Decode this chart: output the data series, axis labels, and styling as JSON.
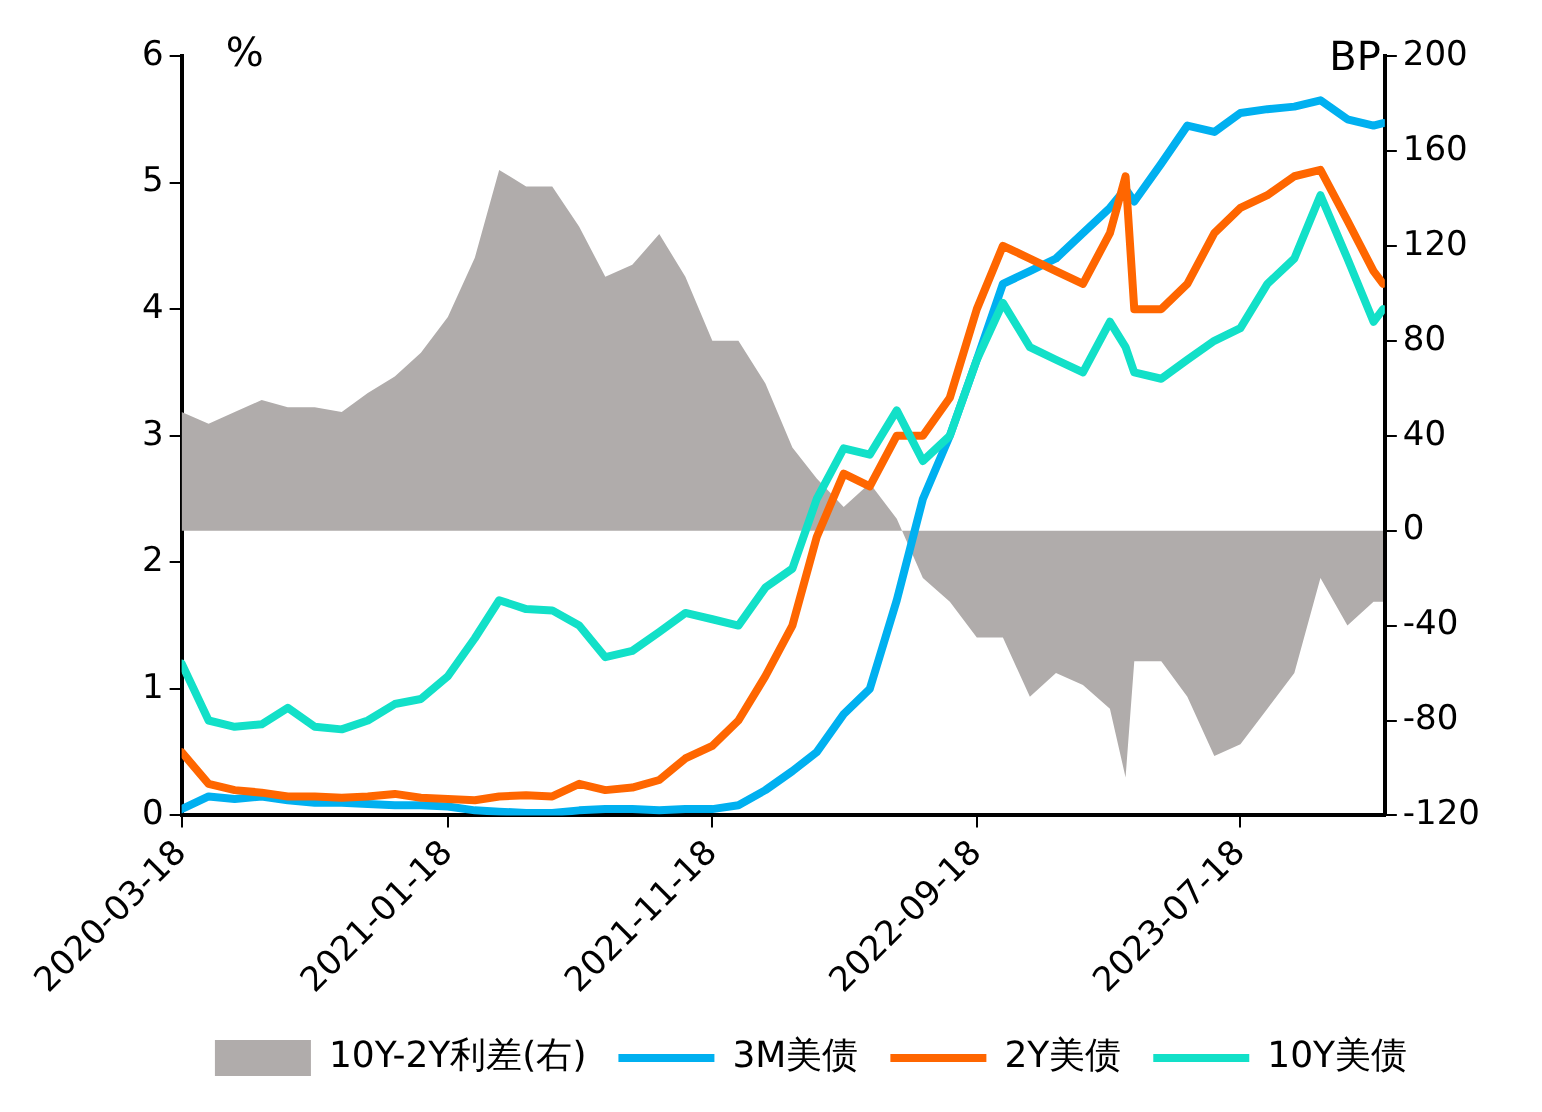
{
  "chart_data": {
    "type": "line",
    "ylabel": "%",
    "y2label": "BP",
    "x": [
      "2020-03-18",
      "2020-04-18",
      "2020-05-18",
      "2020-06-18",
      "2020-07-18",
      "2020-08-18",
      "2020-09-18",
      "2020-10-18",
      "2020-11-18",
      "2020-12-18",
      "2021-01-18",
      "2021-02-18",
      "2021-03-18",
      "2021-04-18",
      "2021-05-18",
      "2021-06-18",
      "2021-07-18",
      "2021-08-18",
      "2021-09-18",
      "2021-10-18",
      "2021-11-18",
      "2021-12-18",
      "2022-01-18",
      "2022-02-18",
      "2022-03-18",
      "2022-04-18",
      "2022-05-18",
      "2022-06-18",
      "2022-07-18",
      "2022-08-18",
      "2022-09-18",
      "2022-10-18",
      "2022-11-18",
      "2022-12-18",
      "2023-01-18",
      "2023-02-18",
      "2023-03-08",
      "2023-03-18",
      "2023-04-18",
      "2023-05-18",
      "2023-06-18",
      "2023-07-18",
      "2023-08-18",
      "2023-09-18",
      "2023-10-18",
      "2023-11-18",
      "2023-12-18",
      "2023-12-29"
    ],
    "series": [
      {
        "name": "10Y-2Y利差(右)",
        "type": "area",
        "axis": "y2",
        "color": "#b0acab",
        "values": [
          50,
          45,
          50,
          55,
          52,
          52,
          50,
          58,
          65,
          75,
          90,
          115,
          152,
          145,
          145,
          128,
          107,
          112,
          125,
          107,
          80,
          80,
          62,
          35,
          22,
          10,
          20,
          5,
          -20,
          -30,
          -45,
          -45,
          -70,
          -60,
          -65,
          -75,
          -104,
          -55,
          -55,
          -70,
          -95,
          -90,
          -75,
          -60,
          -20,
          -40,
          -30,
          -30
        ]
      },
      {
        "name": "3M美债",
        "color": "#00b0f0",
        "values": [
          0.05,
          0.15,
          0.13,
          0.15,
          0.12,
          0.1,
          0.1,
          0.09,
          0.08,
          0.08,
          0.07,
          0.04,
          0.03,
          0.02,
          0.02,
          0.04,
          0.05,
          0.05,
          0.04,
          0.05,
          0.05,
          0.08,
          0.2,
          0.35,
          0.5,
          0.8,
          1.0,
          1.7,
          2.5,
          3.0,
          3.6,
          4.2,
          4.3,
          4.4,
          4.6,
          4.8,
          4.95,
          4.85,
          5.15,
          5.45,
          5.4,
          5.55,
          5.58,
          5.6,
          5.65,
          5.5,
          5.45,
          5.47
        ]
      },
      {
        "name": "2Y美债",
        "color": "#ff6600",
        "values": [
          0.5,
          0.25,
          0.2,
          0.18,
          0.15,
          0.15,
          0.14,
          0.15,
          0.17,
          0.14,
          0.13,
          0.12,
          0.15,
          0.16,
          0.15,
          0.25,
          0.2,
          0.22,
          0.28,
          0.45,
          0.55,
          0.75,
          1.1,
          1.5,
          2.2,
          2.7,
          2.6,
          3.0,
          3.0,
          3.3,
          4.0,
          4.5,
          4.4,
          4.3,
          4.2,
          4.6,
          5.05,
          4.0,
          4.0,
          4.2,
          4.6,
          4.8,
          4.9,
          5.05,
          5.1,
          4.7,
          4.3,
          4.2
        ]
      },
      {
        "name": "10Y美债",
        "color": "#12e0c8",
        "values": [
          1.2,
          0.75,
          0.7,
          0.72,
          0.85,
          0.7,
          0.68,
          0.75,
          0.88,
          0.92,
          1.1,
          1.4,
          1.7,
          1.63,
          1.62,
          1.5,
          1.25,
          1.3,
          1.45,
          1.6,
          1.55,
          1.5,
          1.8,
          1.95,
          2.5,
          2.9,
          2.85,
          3.2,
          2.8,
          3.0,
          3.6,
          4.05,
          3.7,
          3.6,
          3.5,
          3.9,
          3.7,
          3.5,
          3.45,
          3.6,
          3.75,
          3.85,
          4.2,
          4.4,
          4.9,
          4.4,
          3.9,
          4.0
        ]
      }
    ],
    "xlim": [
      "2020-03-18",
      "2023-12-31"
    ],
    "xticks": [
      "2020-03-18",
      "2021-01-18",
      "2021-11-18",
      "2022-09-18",
      "2023-07-18"
    ],
    "ylim": [
      0,
      6
    ],
    "yticks": [
      0,
      1,
      2,
      3,
      4,
      5,
      6
    ],
    "y2lim": [
      -120,
      200
    ],
    "y2ticks": [
      -120,
      -80,
      -40,
      0,
      40,
      80,
      120,
      160,
      200
    ],
    "grid": false,
    "legend": "bottom",
    "marker": "none",
    "line_style": "solid"
  }
}
